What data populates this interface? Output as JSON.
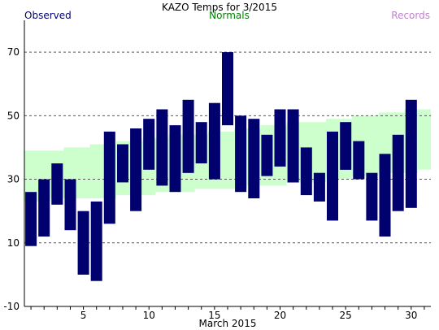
{
  "chart_data": {
    "type": "bar",
    "title": "KAZO Temps for 3/2015",
    "legend": [
      {
        "label": "Observed",
        "color": "#00006e"
      },
      {
        "label": "Normals",
        "color": "#008000"
      },
      {
        "label": "Records",
        "color": "#c080d0"
      }
    ],
    "xlabel": "March 2015",
    "ylabel": "",
    "ylim": [
      -10,
      80
    ],
    "xlim": [
      0.5,
      31.5
    ],
    "yticks": [
      -10,
      10,
      30,
      50,
      70
    ],
    "xticks": [
      5,
      10,
      15,
      20,
      25,
      30
    ],
    "grid": true,
    "colors": {
      "observed": "#00006e",
      "normals": "#ccffcc",
      "grid": "#555555",
      "axis": "#000000"
    },
    "series": [
      {
        "name": "Observed",
        "days": [
          1,
          2,
          3,
          4,
          5,
          6,
          7,
          8,
          9,
          10,
          11,
          12,
          13,
          14,
          15,
          16,
          17,
          18,
          19,
          20,
          21,
          22,
          23,
          24,
          25,
          26,
          27,
          28,
          29,
          30,
          31
        ],
        "high": [
          26,
          30,
          35,
          30,
          20,
          23,
          45,
          41,
          46,
          49,
          52,
          47,
          55,
          48,
          54,
          70,
          50,
          49,
          44,
          52,
          52,
          40,
          32,
          45,
          48,
          42,
          32,
          38,
          44,
          55,
          null
        ],
        "low": [
          9,
          12,
          22,
          14,
          0,
          -2,
          16,
          29,
          20,
          33,
          28,
          26,
          32,
          35,
          30,
          47,
          26,
          24,
          31,
          34,
          29,
          25,
          23,
          17,
          33,
          30,
          17,
          12,
          20,
          21,
          null
        ]
      },
      {
        "name": "Normals",
        "days": [
          1,
          2,
          3,
          4,
          5,
          6,
          7,
          8,
          9,
          10,
          11,
          12,
          13,
          14,
          15,
          16,
          17,
          18,
          19,
          20,
          21,
          22,
          23,
          24,
          25,
          26,
          27,
          28,
          29,
          30,
          31
        ],
        "high": [
          39,
          39,
          39,
          40,
          40,
          41,
          41,
          42,
          42,
          43,
          43,
          44,
          44,
          44,
          45,
          45,
          46,
          46,
          47,
          47,
          48,
          48,
          48,
          49,
          49,
          50,
          50,
          51,
          51,
          52,
          52
        ],
        "low": [
          23,
          23,
          24,
          24,
          24,
          24,
          24,
          25,
          25,
          25,
          26,
          26,
          26,
          27,
          27,
          27,
          27,
          28,
          28,
          28,
          29,
          29,
          29,
          30,
          30,
          31,
          31,
          32,
          32,
          32,
          33
        ]
      }
    ]
  }
}
